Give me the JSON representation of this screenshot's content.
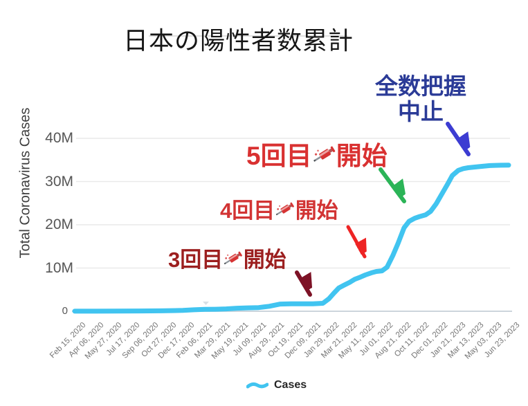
{
  "chart_data": {
    "type": "line",
    "title": "日本の陽性者数累計",
    "ylabel": "Total Coronavirus Cases",
    "xlabel": "",
    "ylim": [
      0,
      44000000
    ],
    "grid": "horizontal-only",
    "legend_position": "bottom-center",
    "line_color": "#41c4f0",
    "y_tick_labels": [
      "40M",
      "30M",
      "20M",
      "10M",
      "0"
    ],
    "x_tick_labels": [
      "Feb 15, 2020",
      "Apr 06, 2020",
      "May 27, 2020",
      "Jul 17, 2020",
      "Sep 06, 2020",
      "Oct 27, 2020",
      "Dec 17, 2020",
      "Feb 06, 2021",
      "Mar 29, 2021",
      "May 19, 2021",
      "Jul 09, 2021",
      "Aug 29, 2021",
      "Oct 19, 2021",
      "Dec 09, 2021",
      "Jan 29, 2022",
      "Mar 21, 2022",
      "May 11, 2022",
      "Jul 01, 2022",
      "Aug 21, 2022",
      "Oct 11, 2022",
      "Dec 01, 2022",
      "Jan 21, 2023",
      "Mar 13, 2023",
      "May 03, 2023",
      "Jun 23, 2023"
    ],
    "x_tick_interval_days": 51,
    "legend": {
      "label": "Cases",
      "color": "#41c4f0"
    },
    "series": [
      {
        "name": "Cases",
        "units": "millions of cumulative cases; x = days since Feb 15, 2020",
        "points": [
          [
            0,
            0.02
          ],
          [
            61,
            0.02
          ],
          [
            122,
            0.03
          ],
          [
            183,
            0.06
          ],
          [
            244,
            0.1
          ],
          [
            305,
            0.2
          ],
          [
            336,
            0.33
          ],
          [
            367,
            0.43
          ],
          [
            397,
            0.47
          ],
          [
            427,
            0.54
          ],
          [
            458,
            0.7
          ],
          [
            488,
            0.79
          ],
          [
            519,
            0.85
          ],
          [
            549,
            1.15
          ],
          [
            580,
            1.66
          ],
          [
            610,
            1.71
          ],
          [
            641,
            1.72
          ],
          [
            672,
            1.73
          ],
          [
            700,
            1.84
          ],
          [
            717,
            2.9
          ],
          [
            731,
            4.2
          ],
          [
            745,
            5.4
          ],
          [
            759,
            6.0
          ],
          [
            776,
            6.7
          ],
          [
            790,
            7.4
          ],
          [
            806,
            7.9
          ],
          [
            820,
            8.4
          ],
          [
            837,
            8.9
          ],
          [
            851,
            9.2
          ],
          [
            867,
            9.35
          ],
          [
            881,
            10.2
          ],
          [
            898,
            13.0
          ],
          [
            912,
            15.7
          ],
          [
            929,
            19.3
          ],
          [
            943,
            20.8
          ],
          [
            959,
            21.5
          ],
          [
            973,
            21.9
          ],
          [
            990,
            22.3
          ],
          [
            1004,
            23.1
          ],
          [
            1020,
            24.9
          ],
          [
            1034,
            26.9
          ],
          [
            1051,
            29.3
          ],
          [
            1065,
            31.4
          ],
          [
            1082,
            32.6
          ],
          [
            1096,
            33.0
          ],
          [
            1110,
            33.2
          ],
          [
            1141,
            33.45
          ],
          [
            1171,
            33.7
          ],
          [
            1202,
            33.78
          ],
          [
            1224,
            33.8
          ]
        ]
      }
    ],
    "annotations": [
      {
        "id": "dose3",
        "text": "3回目💉開始",
        "prefix": "3回目",
        "suffix": "開始",
        "icon": "syringe-icon",
        "text_color": "#9c1f1f",
        "arrow_color": "#7d1226",
        "points_to": "curve at ~2M, Jan 2022"
      },
      {
        "id": "dose4",
        "text": "4回目💉開始",
        "prefix": "4回目",
        "suffix": "開始",
        "icon": "syringe-icon",
        "text_color": "#d23434",
        "arrow_color": "#ee2424",
        "points_to": "curve at ~10M, Jul 2022"
      },
      {
        "id": "dose5",
        "text": "5回目💉開始",
        "prefix": "5回目",
        "suffix": "開始",
        "icon": "syringe-icon",
        "text_color": "#d93131",
        "arrow_color": "#2bb457",
        "points_to": "curve at ~22M, Oct 2022"
      },
      {
        "id": "stop",
        "text": "全数把握中止",
        "line1": "全数把握",
        "line2": "中止",
        "text_color": "#2b3b97",
        "arrow_color": "#3c3cd2",
        "points_to": "plateau at ~34M, early 2023"
      }
    ]
  }
}
